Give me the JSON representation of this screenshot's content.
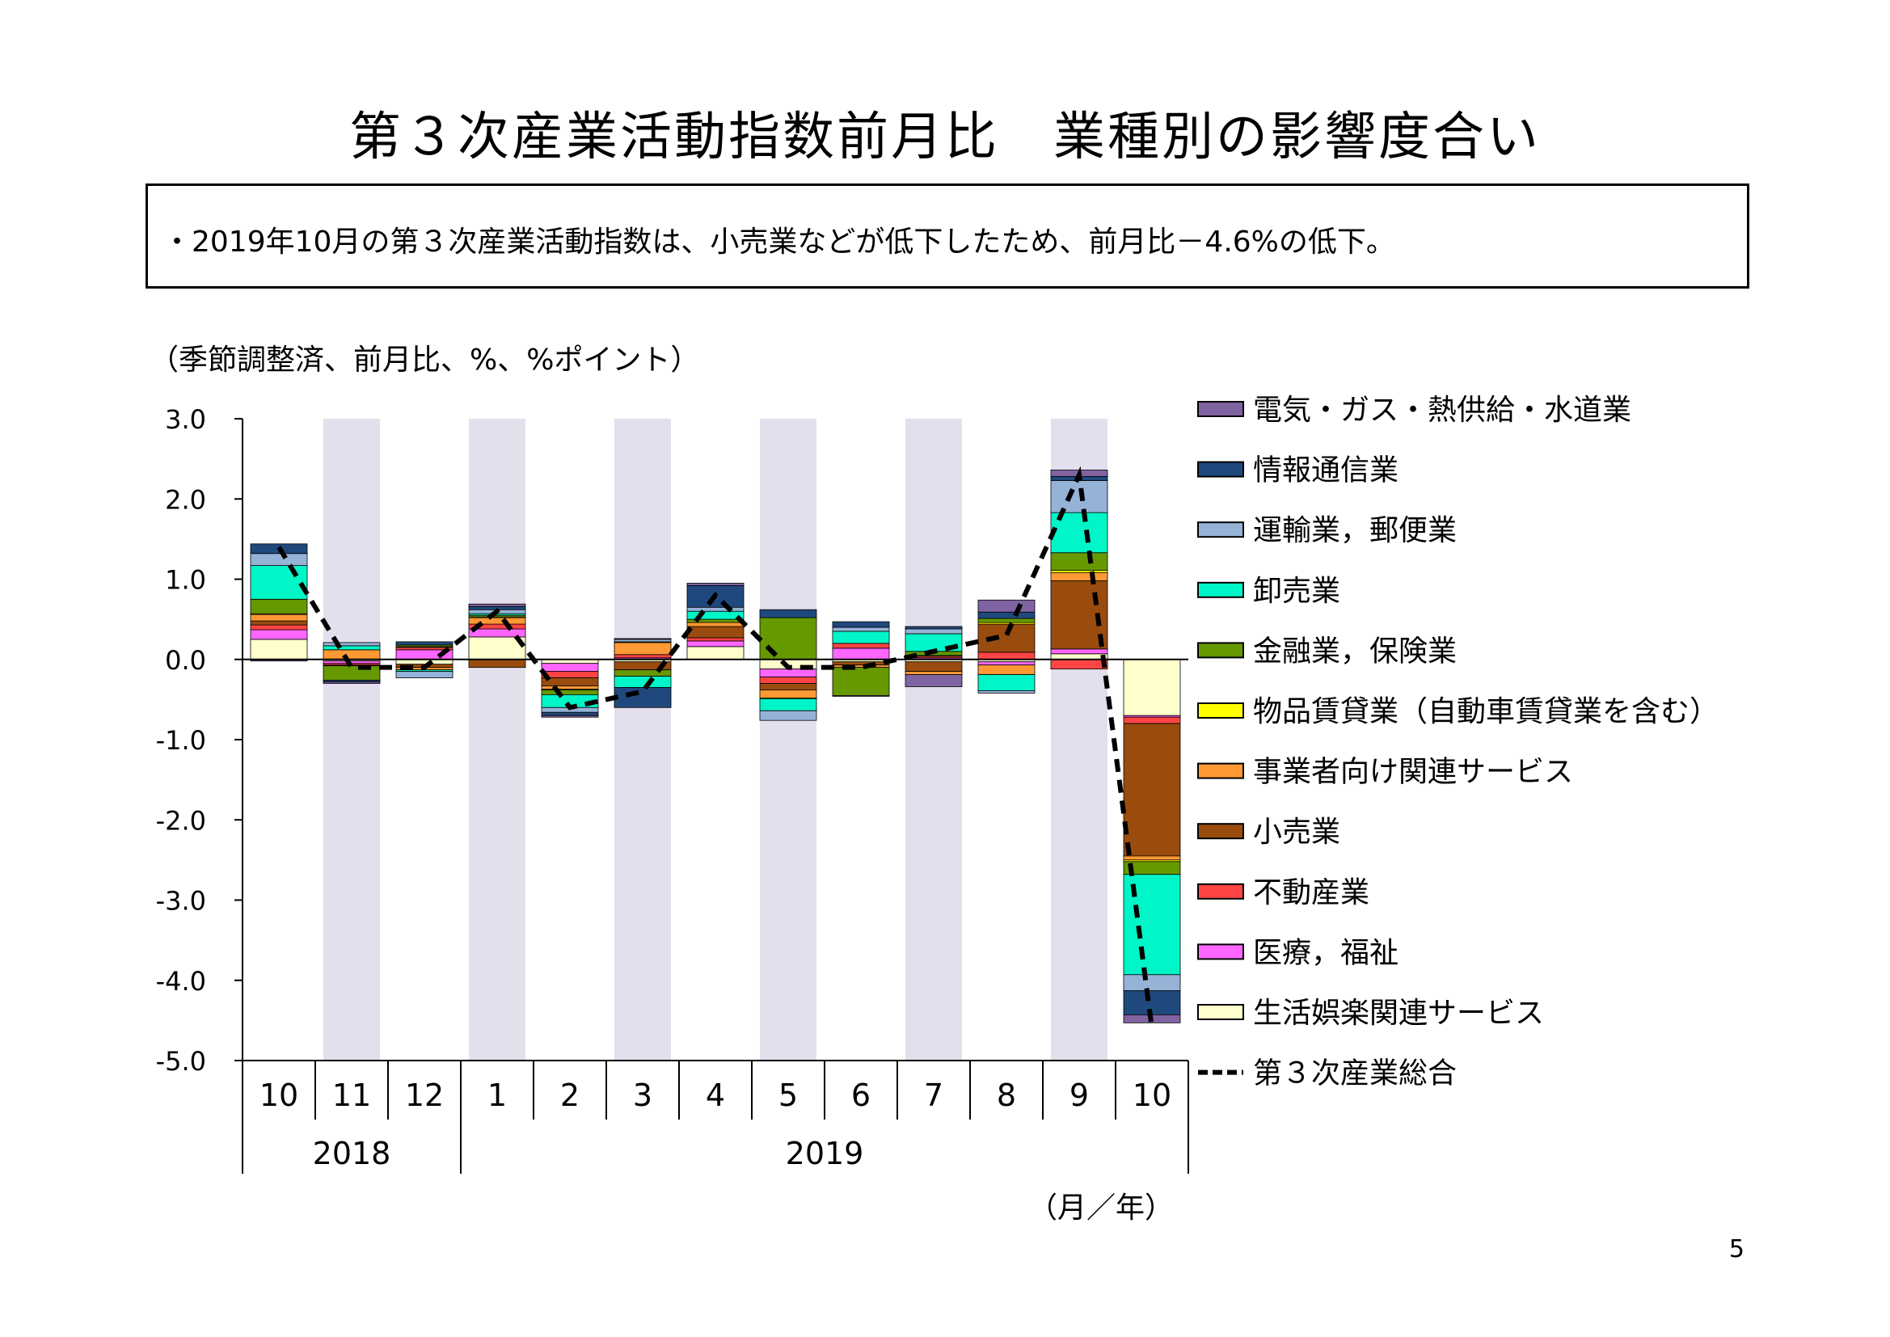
{
  "page": {
    "title": "第３次産業活動指数前月比　業種別の影響度合い",
    "summary": "・2019年10月の第３次産業活動指数は、小売業などが低下したため、前月比－4.6%の低下。",
    "page_number": "5"
  },
  "chart_data": {
    "type": "bar",
    "stacked": true,
    "unit_note": "（季節調整済、前月比、%、%ポイント）",
    "xlabel": "（月／年）",
    "categories": [
      "10",
      "11",
      "12",
      "1",
      "2",
      "3",
      "4",
      "5",
      "6",
      "7",
      "8",
      "9",
      "10"
    ],
    "year_groups": [
      {
        "label": "2018",
        "count": 3
      },
      {
        "label": "2019",
        "count": 10
      }
    ],
    "ylim": [
      -5.0,
      3.0
    ],
    "yticks": [
      3.0,
      2.0,
      1.0,
      0.0,
      -1.0,
      -2.0,
      -3.0,
      -4.0,
      -5.0
    ],
    "ytick_labels": [
      "3.0",
      "2.0",
      "1.0",
      "0.0",
      "-1.0",
      "-2.0",
      "-3.0",
      "-4.0",
      "-5.0"
    ],
    "shaded_categories": [
      1,
      3,
      5,
      7,
      9,
      11
    ],
    "shade_color": "#e4dfec",
    "legend_position": "right",
    "series": [
      {
        "name": "生活娯楽関連サービス",
        "color": "#ffffcc",
        "values": [
          0.25,
          -0.02,
          -0.06,
          0.28,
          -0.05,
          -0.03,
          0.16,
          -0.12,
          -0.03,
          -0.03,
          -0.03,
          0.07,
          -0.7
        ]
      },
      {
        "name": "医療，福祉",
        "color": "#ff66ff",
        "values": [
          0.12,
          -0.03,
          0.12,
          0.1,
          -0.1,
          0.02,
          0.07,
          -0.1,
          0.14,
          0.02,
          -0.04,
          0.06,
          -0.02
        ]
      },
      {
        "name": "不動産業",
        "color": "#ff4444",
        "values": [
          0.06,
          -0.02,
          0.03,
          0.06,
          -0.08,
          0.04,
          0.04,
          -0.08,
          0.06,
          0.02,
          0.09,
          -0.12,
          -0.08
        ]
      },
      {
        "name": "小売業",
        "color": "#994c0e",
        "values": [
          0.05,
          -0.01,
          -0.04,
          -0.1,
          -0.1,
          -0.1,
          0.14,
          -0.08,
          -0.04,
          -0.12,
          0.35,
          0.85,
          -1.65
        ]
      },
      {
        "name": "事業者向け関連サービス",
        "color": "#ff9933",
        "values": [
          0.08,
          0.12,
          -0.03,
          0.08,
          -0.04,
          0.15,
          0.05,
          -0.1,
          -0.03,
          -0.04,
          -0.12,
          0.1,
          -0.05
        ]
      },
      {
        "name": "物品賃貸業（自動車賃貸業を含む）",
        "color": "#ffff00",
        "values": [
          0.01,
          0.0,
          0.01,
          0.01,
          -0.01,
          0.01,
          0.0,
          -0.01,
          0.0,
          0.01,
          0.02,
          0.03,
          -0.02
        ]
      },
      {
        "name": "金融業，保険業",
        "color": "#669900",
        "values": [
          0.18,
          -0.18,
          0.02,
          0.02,
          -0.06,
          -0.08,
          0.04,
          0.52,
          -0.35,
          0.05,
          0.05,
          0.22,
          -0.16
        ]
      },
      {
        "name": "卸売業",
        "color": "#00f5c8",
        "values": [
          0.42,
          0.05,
          -0.02,
          0.02,
          -0.16,
          -0.14,
          0.1,
          -0.15,
          0.15,
          0.22,
          -0.2,
          0.5,
          -1.25
        ]
      },
      {
        "name": "運輸業，郵便業",
        "color": "#95b3d7",
        "values": [
          0.15,
          0.04,
          -0.08,
          0.05,
          -0.06,
          0.03,
          0.05,
          -0.12,
          0.05,
          0.06,
          -0.03,
          0.4,
          -0.2
        ]
      },
      {
        "name": "情報通信業",
        "color": "#1f497d",
        "values": [
          0.12,
          -0.02,
          0.04,
          0.04,
          -0.04,
          -0.25,
          0.27,
          0.1,
          0.07,
          0.03,
          0.08,
          0.05,
          -0.3
        ]
      },
      {
        "name": "電気・ガス・熱供給・水道業",
        "color": "#8064a2",
        "values": [
          -0.02,
          -0.02,
          0.0,
          0.03,
          -0.02,
          0.01,
          0.03,
          0.0,
          -0.01,
          -0.15,
          0.15,
          0.08,
          -0.1
        ]
      }
    ],
    "total": {
      "name": "第３次産業総合",
      "color": "#000000",
      "values": [
        1.4,
        -0.1,
        -0.1,
        0.6,
        -0.6,
        -0.4,
        0.8,
        -0.1,
        -0.1,
        0.1,
        0.3,
        2.3,
        -4.6
      ]
    }
  }
}
